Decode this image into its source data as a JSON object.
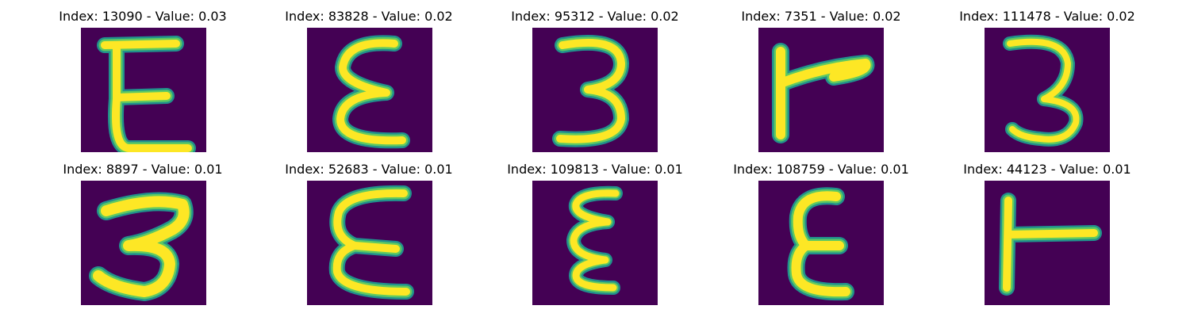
{
  "colors": {
    "background": "#440154",
    "stroke_core": "#fde725",
    "stroke_mid": "#5ec962",
    "stroke_edge": "#21918c"
  },
  "panels": [
    {
      "title": "Index: 13090 - Value: 0.03",
      "glyph": "E"
    },
    {
      "title": "Index: 83828 - Value: 0.02",
      "glyph": "epsilon"
    },
    {
      "title": "Index: 95312 - Value: 0.02",
      "glyph": "three"
    },
    {
      "title": "Index: 7351 - Value: 0.02",
      "glyph": "tee-right"
    },
    {
      "title": "Index: 111478 - Value: 0.02",
      "glyph": "three"
    },
    {
      "title": "Index: 8897 - Value: 0.01",
      "glyph": "three-bold"
    },
    {
      "title": "Index: 52683 - Value: 0.01",
      "glyph": "epsilon"
    },
    {
      "title": "Index: 109813 - Value: 0.01",
      "glyph": "epsilon-narrow"
    },
    {
      "title": "Index: 108759 - Value: 0.01",
      "glyph": "epsilon"
    },
    {
      "title": "Index: 44123 - Value: 0.01",
      "glyph": "tee-right"
    }
  ]
}
